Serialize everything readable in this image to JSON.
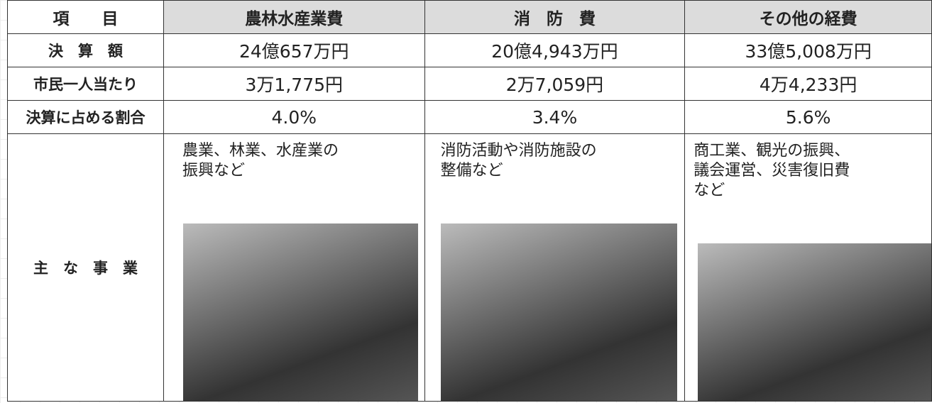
{
  "table": {
    "header": [
      "項　　目",
      "農林水産業費",
      "消　防　費",
      "その他の経費"
    ],
    "rows": [
      [
        "決　算　額",
        "24億657万円",
        "20億4,943万円",
        "33億5,008万円"
      ],
      [
        "市民一人当たり",
        "3万1,775円",
        "2万7,059円",
        "4万4,233円"
      ],
      [
        "決算に占める割合",
        "4.0%",
        "3.4%",
        "5.6%"
      ]
    ],
    "business": {
      "label": "主　な　事　業",
      "items": [
        [
          "農業、林業、水産業の",
          "振興など"
        ],
        [
          "消防活動や消防施設の",
          "整備など"
        ],
        [
          "商工業、観光の振興、",
          "議会運営、災害復旧費",
          "など"
        ]
      ]
    }
  }
}
